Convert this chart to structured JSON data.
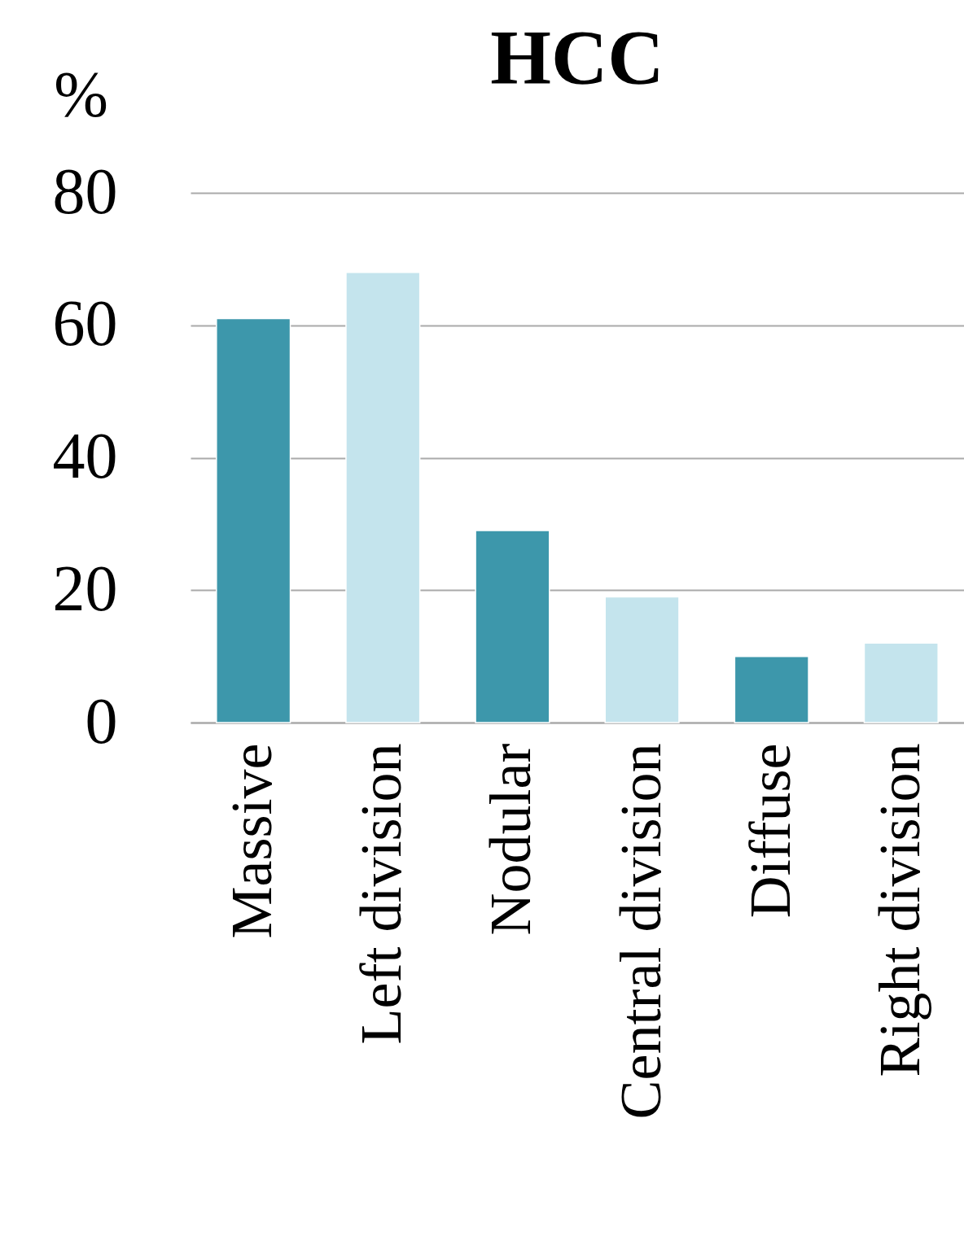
{
  "chart_data": {
    "type": "bar",
    "title": "HCC",
    "ylabel": "%",
    "categories": [
      "Massive",
      "Left division",
      "Nodular",
      "Central division",
      "Diffuse",
      "Right division"
    ],
    "values": [
      61,
      68,
      29,
      19,
      10,
      12
    ],
    "colors": [
      "#3d97ab",
      "#c4e4ed",
      "#3d97ab",
      "#c4e4ed",
      "#3d97ab",
      "#c4e4ed"
    ],
    "ylim": [
      0,
      80
    ],
    "yticks": [
      0,
      20,
      40,
      60,
      80
    ],
    "grid": "y"
  }
}
